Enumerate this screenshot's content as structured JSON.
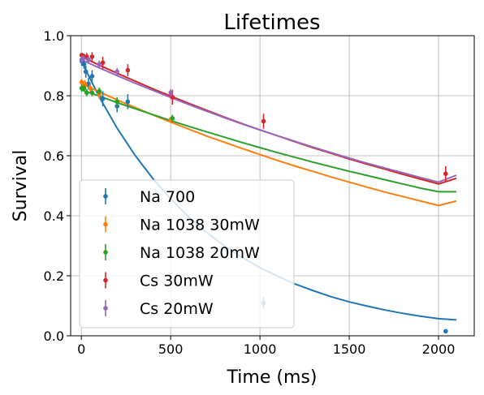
{
  "chart_data": {
    "type": "scatter",
    "title": "Lifetimes",
    "xlabel": "Time (ms)",
    "ylabel": "Survival",
    "xlim": [
      -60,
      2200
    ],
    "ylim": [
      0.0,
      1.0
    ],
    "xticks": [
      0,
      500,
      1000,
      1500,
      2000
    ],
    "yticks": [
      0.0,
      0.2,
      0.4,
      0.6,
      0.8,
      1.0
    ],
    "xtick_labels": [
      "0",
      "500",
      "1000",
      "1500",
      "2000"
    ],
    "ytick_labels": [
      "0.0",
      "0.2",
      "0.4",
      "0.6",
      "0.8",
      "1.0"
    ],
    "grid": true,
    "legend_position": "lower-left",
    "series": [
      {
        "name": "Na 700",
        "color": "#1f77b4",
        "points": [
          {
            "x": 2,
            "y": 0.915,
            "err": 0.015
          },
          {
            "x": 15,
            "y": 0.905,
            "err": 0.015
          },
          {
            "x": 25,
            "y": 0.88,
            "err": 0.02
          },
          {
            "x": 40,
            "y": 0.84,
            "err": 0.02
          },
          {
            "x": 60,
            "y": 0.865,
            "err": 0.02
          },
          {
            "x": 120,
            "y": 0.79,
            "err": 0.025
          },
          {
            "x": 200,
            "y": 0.765,
            "err": 0.02
          },
          {
            "x": 260,
            "y": 0.78,
            "err": 0.025
          },
          {
            "x": 1020,
            "y": 0.11,
            "err": 0.02
          },
          {
            "x": 2040,
            "y": 0.015,
            "err": 0.0
          }
        ],
        "fit": {
          "x": [
            0,
            100,
            200,
            300,
            400,
            500,
            600,
            700,
            800,
            900,
            1000,
            1100,
            1200,
            1300,
            1400,
            1500,
            1600,
            1700,
            1800,
            1900,
            2000,
            2100
          ],
          "y": [
            0.915,
            0.796,
            0.692,
            0.602,
            0.524,
            0.456,
            0.397,
            0.345,
            0.3,
            0.261,
            0.227,
            0.198,
            0.172,
            0.15,
            0.13,
            0.113,
            0.099,
            0.086,
            0.075,
            0.065,
            0.057,
            0.053
          ]
        }
      },
      {
        "name": "Na 1038 30mW",
        "color": "#ff7f0e",
        "points": [
          {
            "x": 2,
            "y": 0.845,
            "err": 0.01
          },
          {
            "x": 10,
            "y": 0.835,
            "err": 0.012
          },
          {
            "x": 20,
            "y": 0.84,
            "err": 0.012
          },
          {
            "x": 50,
            "y": 0.825,
            "err": 0.015
          },
          {
            "x": 100,
            "y": 0.805,
            "err": 0.015
          },
          {
            "x": 500,
            "y": 0.72,
            "err": 0.01
          }
        ],
        "fit": {
          "x": [
            0,
            100,
            200,
            300,
            400,
            500,
            600,
            700,
            800,
            900,
            1000,
            1100,
            1200,
            1300,
            1400,
            1500,
            1600,
            1700,
            1800,
            1900,
            2000,
            2100
          ],
          "y": [
            0.84,
            0.813,
            0.786,
            0.761,
            0.736,
            0.712,
            0.689,
            0.666,
            0.645,
            0.624,
            0.604,
            0.584,
            0.565,
            0.547,
            0.529,
            0.512,
            0.495,
            0.479,
            0.464,
            0.449,
            0.434,
            0.449
          ]
        }
      },
      {
        "name": "Na 1038 20mW",
        "color": "#2ca02c",
        "points": [
          {
            "x": 2,
            "y": 0.825,
            "err": 0.012
          },
          {
            "x": 15,
            "y": 0.825,
            "err": 0.012
          },
          {
            "x": 30,
            "y": 0.81,
            "err": 0.012
          },
          {
            "x": 60,
            "y": 0.81,
            "err": 0.012
          },
          {
            "x": 100,
            "y": 0.815,
            "err": 0.012
          },
          {
            "x": 200,
            "y": 0.78,
            "err": 0.015
          },
          {
            "x": 510,
            "y": 0.725,
            "err": 0.012
          }
        ],
        "fit": {
          "x": [
            0,
            100,
            200,
            300,
            400,
            500,
            600,
            700,
            800,
            900,
            1000,
            1100,
            1200,
            1300,
            1400,
            1500,
            1600,
            1700,
            1800,
            1900,
            2000,
            2100
          ],
          "y": [
            0.82,
            0.799,
            0.777,
            0.757,
            0.737,
            0.717,
            0.698,
            0.68,
            0.662,
            0.644,
            0.627,
            0.61,
            0.594,
            0.578,
            0.563,
            0.548,
            0.534,
            0.52,
            0.506,
            0.492,
            0.48,
            0.48
          ]
        }
      },
      {
        "name": "Cs 30mW",
        "color": "#d62728",
        "points": [
          {
            "x": 2,
            "y": 0.935,
            "err": 0.008
          },
          {
            "x": 15,
            "y": 0.93,
            "err": 0.01
          },
          {
            "x": 30,
            "y": 0.93,
            "err": 0.012
          },
          {
            "x": 60,
            "y": 0.93,
            "err": 0.015
          },
          {
            "x": 120,
            "y": 0.91,
            "err": 0.02
          },
          {
            "x": 260,
            "y": 0.885,
            "err": 0.02
          },
          {
            "x": 510,
            "y": 0.795,
            "err": 0.025
          },
          {
            "x": 1020,
            "y": 0.715,
            "err": 0.025
          },
          {
            "x": 2040,
            "y": 0.54,
            "err": 0.025
          }
        ],
        "fit": {
          "x": [
            0,
            100,
            200,
            300,
            400,
            500,
            600,
            700,
            800,
            900,
            1000,
            1100,
            1200,
            1300,
            1400,
            1500,
            1600,
            1700,
            1800,
            1900,
            2000,
            2100
          ],
          "y": [
            0.93,
            0.902,
            0.875,
            0.849,
            0.823,
            0.799,
            0.775,
            0.752,
            0.729,
            0.707,
            0.686,
            0.666,
            0.646,
            0.626,
            0.608,
            0.589,
            0.572,
            0.555,
            0.538,
            0.522,
            0.506,
            0.525
          ]
        }
      },
      {
        "name": "Cs 20mW",
        "color": "#9467bd",
        "points": [
          {
            "x": 2,
            "y": 0.92,
            "err": 0.01
          },
          {
            "x": 10,
            "y": 0.925,
            "err": 0.01
          },
          {
            "x": 40,
            "y": 0.92,
            "err": 0.012
          },
          {
            "x": 100,
            "y": 0.905,
            "err": 0.012
          },
          {
            "x": 200,
            "y": 0.88,
            "err": 0.012
          },
          {
            "x": 500,
            "y": 0.81,
            "err": 0.012
          }
        ],
        "fit": {
          "x": [
            0,
            100,
            200,
            300,
            400,
            500,
            600,
            700,
            800,
            900,
            1000,
            1100,
            1200,
            1300,
            1400,
            1500,
            1600,
            1700,
            1800,
            1900,
            2000,
            2100
          ],
          "y": [
            0.92,
            0.893,
            0.867,
            0.842,
            0.818,
            0.794,
            0.771,
            0.749,
            0.727,
            0.706,
            0.686,
            0.666,
            0.647,
            0.628,
            0.61,
            0.592,
            0.575,
            0.559,
            0.543,
            0.527,
            0.512,
            0.535
          ]
        }
      }
    ]
  }
}
